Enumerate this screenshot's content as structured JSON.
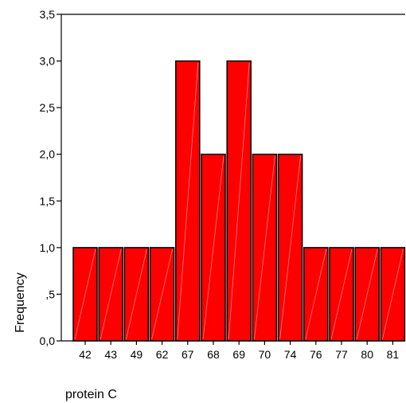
{
  "chart_data": {
    "type": "bar",
    "title": "",
    "xlabel": "protein C",
    "ylabel": "Frequency",
    "categories": [
      "42",
      "43",
      "49",
      "62",
      "67",
      "68",
      "69",
      "70",
      "74",
      "76",
      "77",
      "80",
      "81"
    ],
    "values": [
      1,
      1,
      1,
      1,
      3,
      2,
      3,
      2,
      2,
      1,
      1,
      1,
      1
    ],
    "ylim": [
      0,
      3.5
    ],
    "yticks": [
      0,
      0.5,
      1,
      1.5,
      2,
      2.5,
      3,
      3.5
    ],
    "ytick_labels": [
      "0,0",
      ",5",
      "1,0",
      "1,5",
      "2,0",
      "2,5",
      "3,0",
      "3,5"
    ],
    "grid": false,
    "bar_color": "#ff0000",
    "bar_edge_color": "#000000",
    "axis_color": "#000000"
  }
}
